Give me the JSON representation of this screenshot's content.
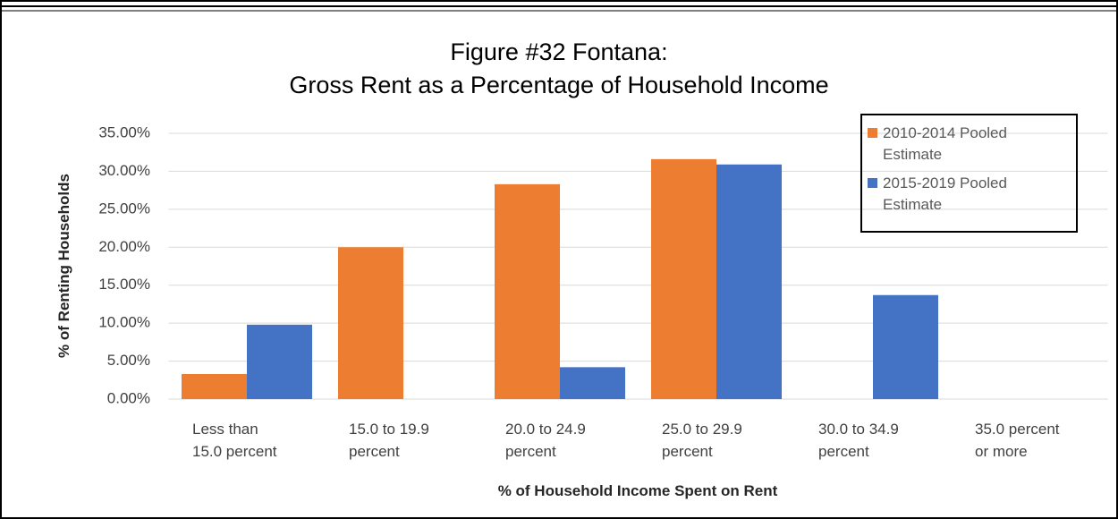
{
  "chart_data": {
    "type": "bar",
    "title": "Figure #32  Fontana:\nGross Rent as a Percentage of Household Income",
    "xlabel": "% of Household Income Spent on Rent",
    "ylabel": "% of Renting Households",
    "categories": [
      "Less than\n15.0 percent",
      "15.0 to 19.9\npercent",
      "20.0 to 24.9\npercent",
      "25.0 to 29.9\npercent",
      "30.0 to 34.9\npercent",
      "35.0 percent\nor more"
    ],
    "series": [
      {
        "name": "2010-2014 Pooled Estimate",
        "color": "#ed7d31",
        "values": [
          3.3,
          20.0,
          28.3,
          31.6,
          0,
          0
        ]
      },
      {
        "name": "2015-2019 Pooled Estimate",
        "color": "#4472c4",
        "values": [
          9.8,
          0,
          4.2,
          30.9,
          13.7,
          0
        ]
      }
    ],
    "ylim": [
      0,
      35
    ],
    "yticks": [
      {
        "value": 0,
        "label": "0.00%"
      },
      {
        "value": 5,
        "label": "5.00%"
      },
      {
        "value": 10,
        "label": "10.00%"
      },
      {
        "value": 15,
        "label": "15.00%"
      },
      {
        "value": 20,
        "label": "20.00%"
      },
      {
        "value": 25,
        "label": "25.00%"
      },
      {
        "value": 30,
        "label": "30.00%"
      },
      {
        "value": 35,
        "label": "35.00%"
      }
    ],
    "grid": true,
    "legend": "upper right"
  }
}
